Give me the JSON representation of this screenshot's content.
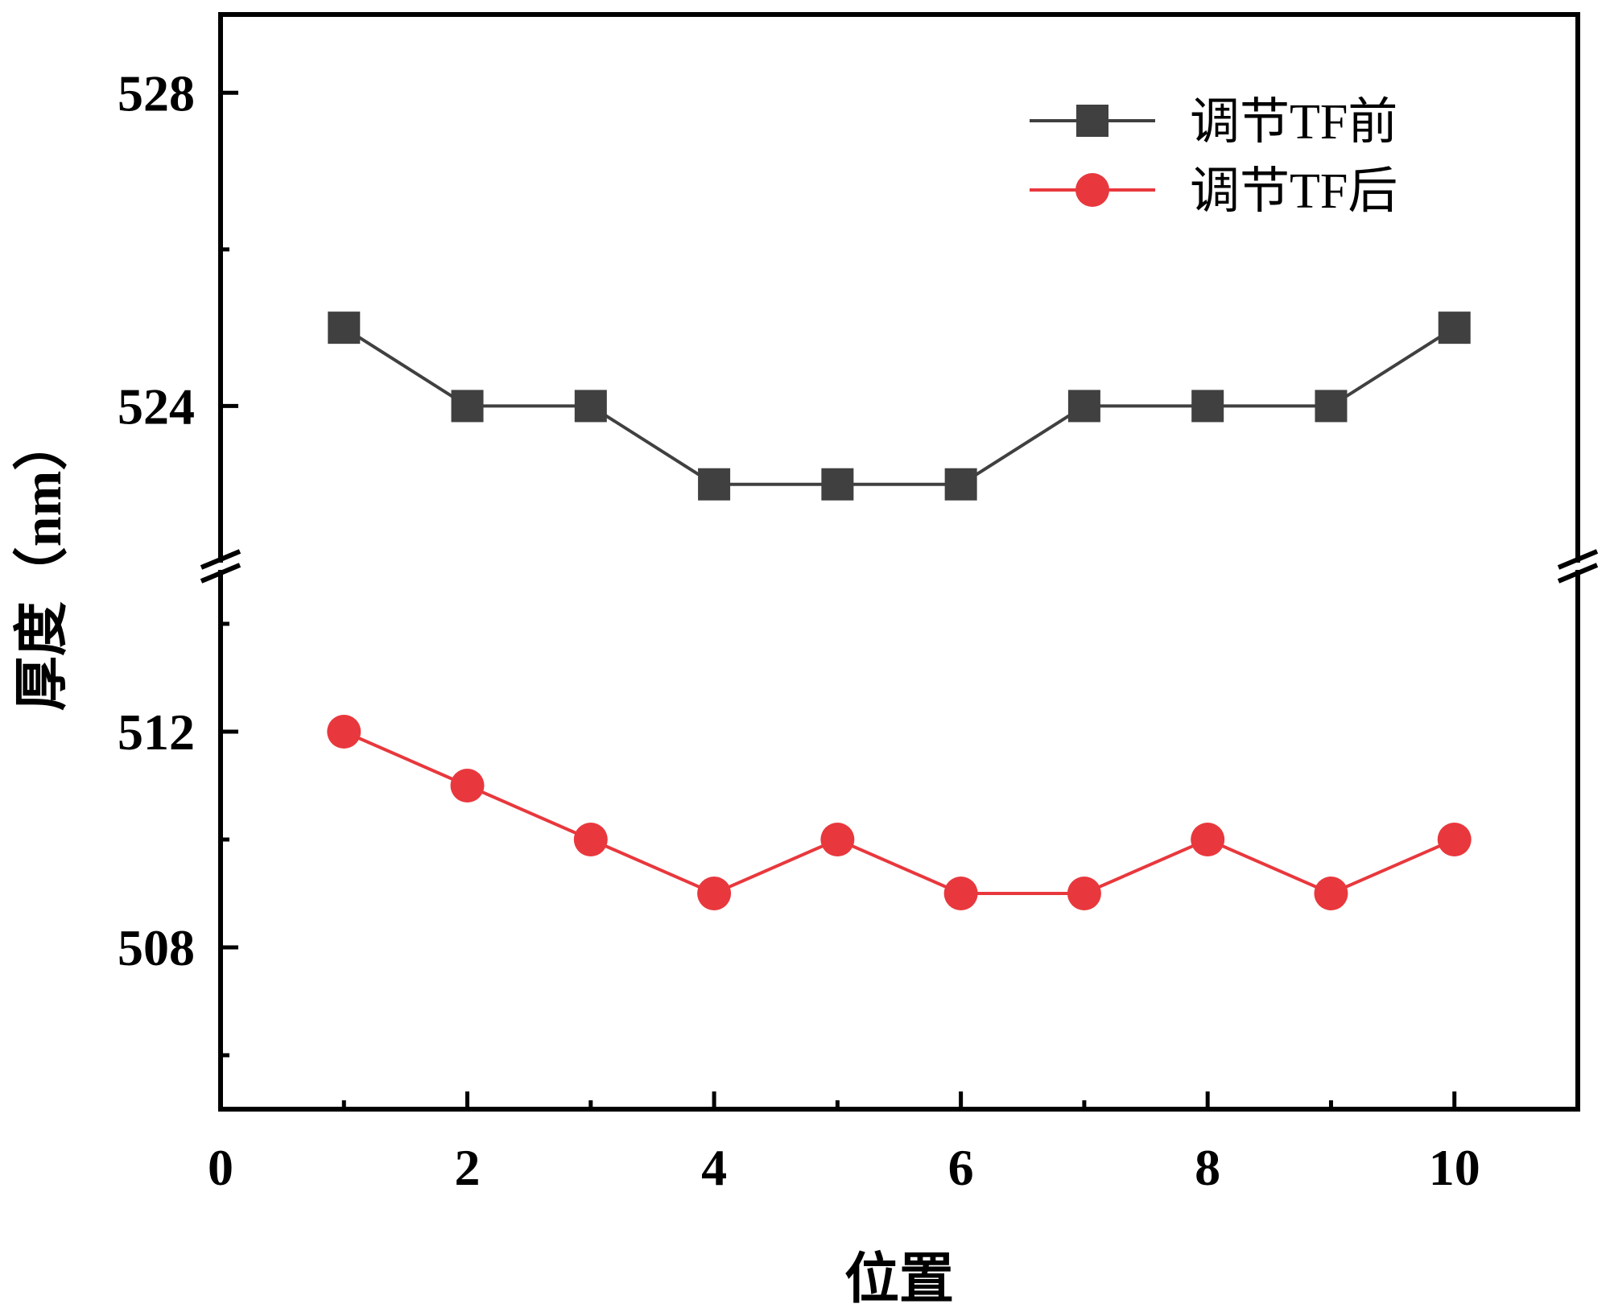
{
  "chart_data": {
    "type": "line",
    "xlabel": "位置",
    "ylabel": "厚度（nm）",
    "xlim": [
      0,
      11
    ],
    "x_ticks": [
      0,
      2,
      4,
      6,
      8,
      10
    ],
    "y_axis_break": true,
    "ylim_upper_segment": [
      522,
      529
    ],
    "ylim_lower_segment": [
      505,
      515
    ],
    "y_ticks_upper": [
      524,
      528
    ],
    "y_ticks_lower": [
      508,
      512
    ],
    "grid": false,
    "legend_position": "top-right",
    "x": [
      1,
      2,
      3,
      4,
      5,
      6,
      7,
      8,
      9,
      10
    ],
    "series": [
      {
        "name": "调节TF前",
        "marker": "square",
        "color": "#404040",
        "segment": "upper",
        "values": [
          525,
          524,
          524,
          523,
          523,
          523,
          524,
          524,
          524,
          525
        ]
      },
      {
        "name": "调节TF后",
        "marker": "circle",
        "color": "#e8383d",
        "segment": "lower",
        "values": [
          512,
          511,
          510,
          509,
          510,
          509,
          509,
          510,
          509,
          510
        ]
      }
    ]
  }
}
